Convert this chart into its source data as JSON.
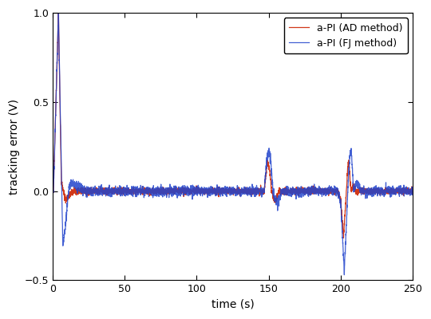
{
  "title": "",
  "xlabel": "time (s)",
  "ylabel": "tracking error (V)",
  "xlim": [
    0,
    250
  ],
  "ylim": [
    -0.5,
    1.0
  ],
  "yticks": [
    -0.5,
    0,
    0.5,
    1.0
  ],
  "xticks": [
    0,
    50,
    100,
    150,
    200,
    250
  ],
  "line_red_label": "a-PI (AD method)",
  "line_blue_label": "a-PI (FJ method)",
  "red_color": "#cc2200",
  "blue_color": "#2244cc",
  "background_color": "#ffffff",
  "dt": 0.05,
  "total_time": 250,
  "noise_amp_red": 0.012,
  "noise_amp_blue": 0.018,
  "noise_seed_red": 101,
  "noise_seed_blue": 202
}
